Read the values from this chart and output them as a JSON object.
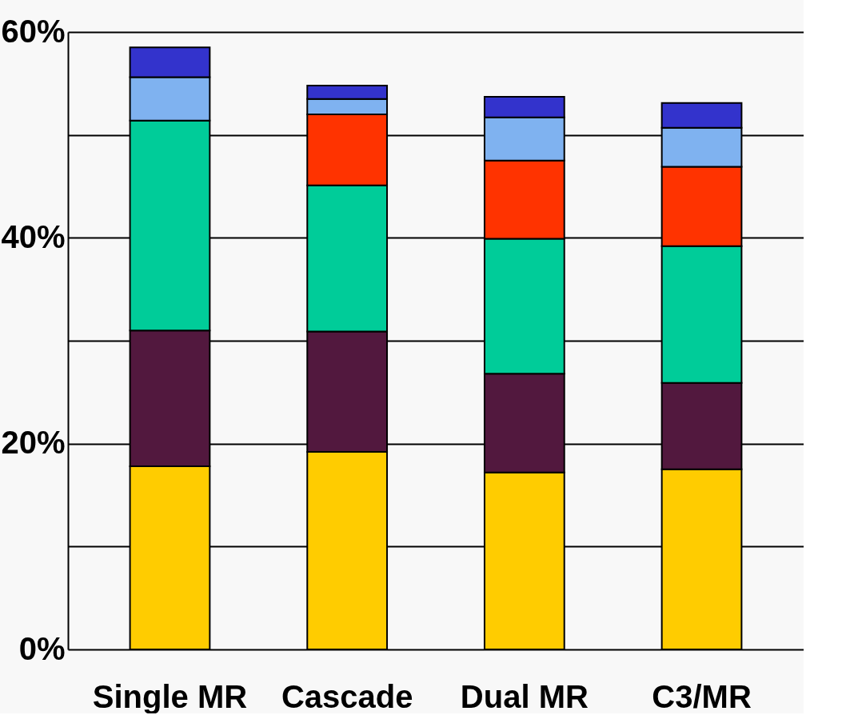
{
  "chart_data": {
    "type": "bar",
    "stacked": true,
    "categories": [
      "Single MR",
      "Cascade",
      "Dual MR",
      "C3/MR"
    ],
    "series": [
      {
        "color": "#ffcc00",
        "values": [
          17.8,
          19.2,
          17.2,
          17.5
        ]
      },
      {
        "color": "#52183e",
        "values": [
          13.2,
          11.7,
          9.6,
          8.4
        ]
      },
      {
        "color": "#00cc99",
        "values": [
          20.4,
          14.2,
          13.1,
          13.3
        ]
      },
      {
        "color": "#ff3300",
        "values": [
          0,
          6.9,
          7.6,
          7.7
        ]
      },
      {
        "color": "#7fb2f0",
        "values": [
          4.2,
          1.5,
          4.2,
          3.8
        ]
      },
      {
        "color": "#3333cc",
        "values": [
          2.9,
          1.3,
          2.0,
          2.4
        ]
      }
    ],
    "ylim": [
      0,
      60
    ],
    "yticks": [
      {
        "value": 0,
        "label": "0%"
      },
      {
        "value": 10,
        "label": null
      },
      {
        "value": 20,
        "label": "20%"
      },
      {
        "value": 30,
        "label": null
      },
      {
        "value": 40,
        "label": "40%"
      },
      {
        "value": 50,
        "label": null
      },
      {
        "value": 60,
        "label": "60%"
      }
    ],
    "grid": "y",
    "legend": false
  }
}
